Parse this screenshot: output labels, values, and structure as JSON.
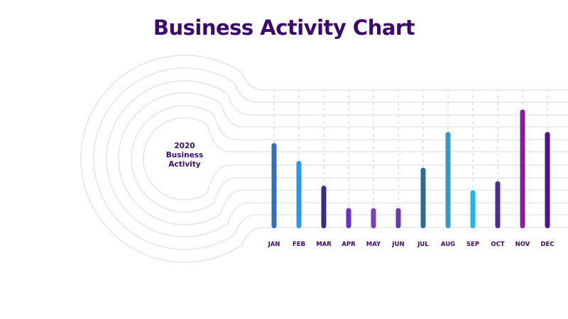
{
  "chart_data": {
    "type": "bar",
    "title": "Business Activity Chart",
    "center_label": [
      "2020",
      "Business",
      "Activity"
    ],
    "categories": [
      "JAN",
      "FEB",
      "MAR",
      "APR",
      "MAY",
      "JUN",
      "JUL",
      "AUG",
      "SEP",
      "OCT",
      "NOV",
      "DEC"
    ],
    "values": [
      38,
      30,
      19,
      9,
      9,
      9,
      27,
      43,
      17,
      21,
      53,
      43
    ],
    "ylim": [
      0,
      62
    ],
    "grid": true,
    "colors": [
      "#2f6fbe",
      "#2e95e8",
      "#3e2a86",
      "#6a2fc4",
      "#7b3fc0",
      "#6e3aa8",
      "#2f6a96",
      "#3a96c4",
      "#22b7e6",
      "#4d2f86",
      "#8a1aa0",
      "#4e1680"
    ],
    "grid_color": "#e6e6e6",
    "text_color": "#3b0a6b"
  }
}
